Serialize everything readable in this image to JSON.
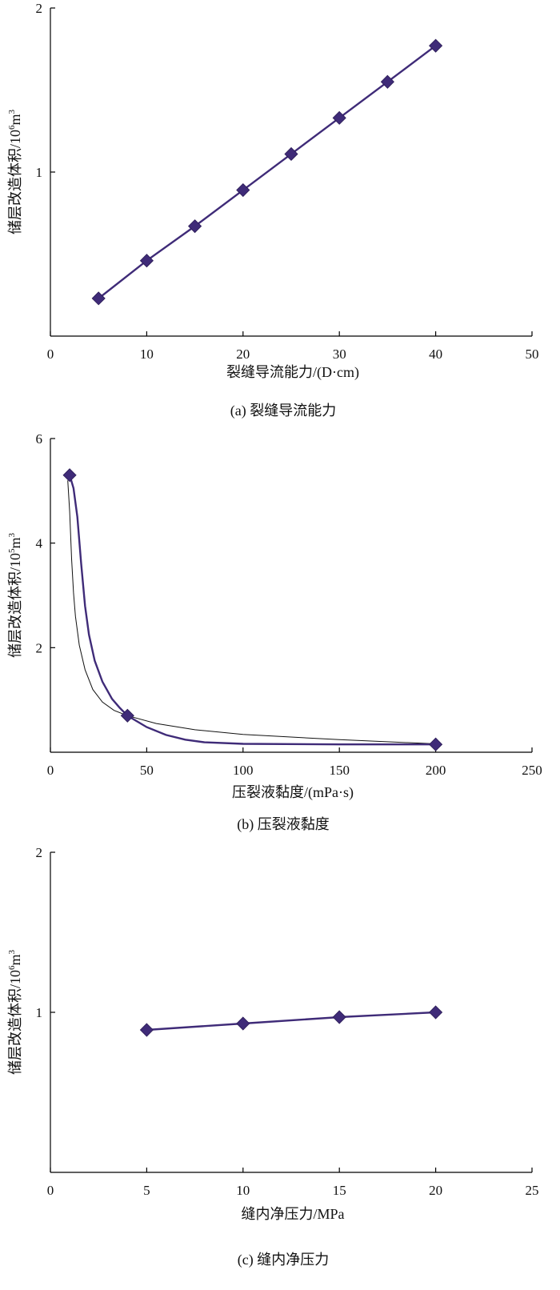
{
  "colors": {
    "series": "#3f2b78",
    "axis": "#000000",
    "fit": "#111111"
  },
  "chart_data": [
    {
      "type": "line",
      "caption": "(a) 裂缝导流能力",
      "xlabel": "裂缝导流能力/(D·cm)",
      "ylabel": "储层改造体积/10",
      "ylabel_sup": "6",
      "ylabel_unit": "m",
      "ylabel_unit_sup": "3",
      "xlim": [
        0,
        50
      ],
      "ylim": [
        0,
        2
      ],
      "xticks": [
        "0",
        "10",
        "20",
        "30",
        "40",
        "50"
      ],
      "yticks": [
        "1",
        "2"
      ],
      "grid": false,
      "series": [
        {
          "x": [
            5,
            10,
            15,
            20,
            25,
            30,
            35,
            40
          ],
          "y": [
            0.23,
            0.46,
            0.67,
            0.89,
            1.11,
            1.33,
            1.55,
            1.77
          ]
        }
      ]
    },
    {
      "type": "line",
      "caption": "(b) 压裂液黏度",
      "xlabel": "压裂液黏度/(mPa·s)",
      "ylabel": "储层改造体积/10",
      "ylabel_sup": "5",
      "ylabel_unit": "m",
      "ylabel_unit_sup": "3",
      "xlim": [
        0,
        250
      ],
      "ylim": [
        0,
        6
      ],
      "xticks": [
        "0",
        "50",
        "100",
        "150",
        "200",
        "250"
      ],
      "yticks": [
        "2",
        "4",
        "6"
      ],
      "grid": false,
      "series": [
        {
          "x": [
            10,
            40,
            200
          ],
          "y": [
            5.3,
            0.7,
            0.15
          ],
          "curve": [
            [
              10,
              5.3
            ],
            [
              12,
              5.05
            ],
            [
              14,
              4.5
            ],
            [
              16,
              3.6
            ],
            [
              18,
              2.8
            ],
            [
              20,
              2.25
            ],
            [
              23,
              1.75
            ],
            [
              27,
              1.35
            ],
            [
              32,
              1.02
            ],
            [
              36,
              0.85
            ],
            [
              40,
              0.7
            ],
            [
              50,
              0.48
            ],
            [
              60,
              0.33
            ],
            [
              70,
              0.24
            ],
            [
              80,
              0.19
            ],
            [
              100,
              0.16
            ],
            [
              150,
              0.15
            ],
            [
              200,
              0.15
            ]
          ]
        }
      ],
      "fit_curve": [
        [
          9,
          5.2
        ],
        [
          10,
          4.6
        ],
        [
          11,
          3.7
        ],
        [
          12,
          3.05
        ],
        [
          13,
          2.6
        ],
        [
          15,
          2.05
        ],
        [
          18,
          1.58
        ],
        [
          22,
          1.2
        ],
        [
          27,
          0.96
        ],
        [
          33,
          0.8
        ],
        [
          40,
          0.7
        ],
        [
          55,
          0.55
        ],
        [
          75,
          0.43
        ],
        [
          100,
          0.34
        ],
        [
          150,
          0.24
        ],
        [
          200,
          0.16
        ]
      ]
    },
    {
      "type": "line",
      "caption": "(c) 缝内净压力",
      "xlabel": "缝内净压力/MPa",
      "ylabel": "储层改造体积/10",
      "ylabel_sup": "6",
      "ylabel_unit": "m",
      "ylabel_unit_sup": "3",
      "xlim": [
        0,
        25
      ],
      "ylim": [
        0,
        2
      ],
      "xticks": [
        "0",
        "5",
        "10",
        "15",
        "20",
        "25"
      ],
      "yticks": [
        "1",
        "2"
      ],
      "grid": false,
      "series": [
        {
          "x": [
            5,
            10,
            15,
            20
          ],
          "y": [
            0.89,
            0.93,
            0.97,
            1.0
          ]
        }
      ]
    }
  ]
}
